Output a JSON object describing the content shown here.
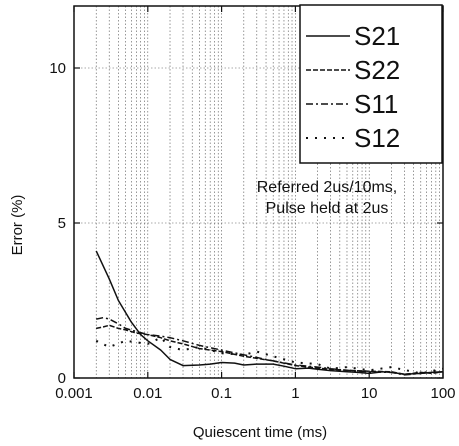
{
  "chart_data": {
    "type": "line",
    "xlabel": "Quiescent time (ms)",
    "ylabel": "Error (%)",
    "xscale": "log",
    "xlim": [
      0.001,
      100
    ],
    "ylim": [
      0,
      12
    ],
    "grid": "vertical log minor gridlines, horizontal at 5 and 10",
    "legend_position": "top-right",
    "x_ticks": [
      "0.001",
      "0.01",
      "0.1",
      "1",
      "10",
      "100"
    ],
    "y_ticks": [
      "0",
      "5",
      "10"
    ],
    "annotation": [
      "Referred 2us/10ms,",
      "Pulse held at 2us"
    ],
    "series": [
      {
        "name": "S21",
        "style": "solid",
        "x": [
          0.002,
          0.003,
          0.004,
          0.006,
          0.008,
          0.01,
          0.015,
          0.02,
          0.03,
          0.05,
          0.07,
          0.1,
          0.15,
          0.2,
          0.3,
          0.5,
          0.7,
          1,
          1.5,
          2,
          3,
          5,
          7,
          10,
          15,
          20,
          30,
          50,
          70,
          100
        ],
        "y": [
          4.1,
          3.2,
          2.5,
          1.8,
          1.4,
          1.2,
          0.9,
          0.6,
          0.4,
          0.42,
          0.45,
          0.5,
          0.48,
          0.42,
          0.45,
          0.45,
          0.38,
          0.3,
          0.32,
          0.28,
          0.24,
          0.2,
          0.18,
          0.15,
          0.2,
          0.18,
          0.12,
          0.15,
          0.18,
          0.2
        ]
      },
      {
        "name": "S22",
        "style": "dashed",
        "x": [
          0.002,
          0.0025,
          0.003,
          0.004,
          0.005,
          0.007,
          0.01,
          0.015,
          0.02,
          0.03,
          0.05,
          0.1,
          0.2,
          0.5,
          1,
          2,
          3,
          5,
          10,
          20,
          30,
          50,
          70,
          100
        ],
        "y": [
          1.6,
          1.65,
          1.7,
          1.6,
          1.55,
          1.45,
          1.4,
          1.3,
          1.2,
          1.1,
          0.95,
          0.85,
          0.7,
          0.55,
          0.4,
          0.32,
          0.28,
          0.25,
          0.22,
          0.2,
          0.12,
          0.18,
          0.15,
          0.2
        ]
      },
      {
        "name": "S11",
        "style": "dash-dot",
        "x": [
          0.002,
          0.0025,
          0.003,
          0.004,
          0.005,
          0.007,
          0.01,
          0.015,
          0.02,
          0.03,
          0.05,
          0.1,
          0.2,
          0.5,
          1,
          2,
          3,
          5,
          10,
          20,
          30,
          50,
          100
        ],
        "y": [
          1.9,
          1.95,
          1.9,
          1.75,
          1.6,
          1.5,
          1.4,
          1.35,
          1.3,
          1.2,
          1.05,
          0.9,
          0.75,
          0.55,
          0.42,
          0.35,
          0.3,
          0.25,
          0.2,
          0.18,
          0.1,
          0.15,
          0.2
        ]
      },
      {
        "name": "S12",
        "style": "dotted",
        "x": [
          0.002,
          0.003,
          0.005,
          0.01,
          0.015,
          0.02,
          0.03,
          0.05,
          0.1,
          0.2,
          0.3,
          0.5,
          1,
          2,
          3,
          5,
          10,
          20,
          50,
          100
        ],
        "y": [
          1.2,
          1.0,
          1.2,
          1.1,
          1.3,
          1.0,
          0.9,
          1.0,
          0.8,
          0.75,
          0.85,
          0.7,
          0.5,
          0.45,
          0.3,
          0.35,
          0.25,
          0.35,
          0.15,
          0.3
        ]
      }
    ]
  }
}
